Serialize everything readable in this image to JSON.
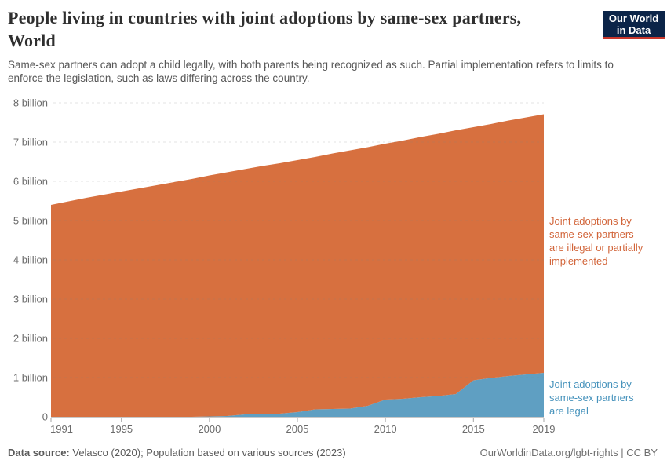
{
  "header": {
    "title_line1": "People living in countries with joint adoptions by same-sex partners,",
    "title_line2": "World",
    "subtitle": "Same-sex partners can adopt a child legally, with both parents being recognized as such. Partial implementation refers to limits to enforce the legislation, such as laws differing across the country.",
    "logo_line1": "Our World",
    "logo_line2": "in Data"
  },
  "legend": {
    "illegal_label": "Joint adoptions by same-sex partners are illegal or partially implemented",
    "legal_label": "Joint adoptions by same-sex partners are legal"
  },
  "footer": {
    "source_prefix": "Data source:",
    "source_text": " Velasco (2020); Population based on various sources (2023)",
    "credit": "OurWorldinData.org/lgbt-rights | CC BY"
  },
  "colors": {
    "legal_area": "#5f9fc2",
    "illegal_area": "#d7703f",
    "legal_label_text": "#4793bc",
    "illegal_label_text": "#d2653a",
    "logo_bg": "#0b2448",
    "logo_bar": "#c9372c",
    "gridline": "#808080",
    "axis_line": "#c7c7c7",
    "axis_tick": "#a5a5a5",
    "axis_text": "#6b6b6b"
  },
  "chart_data": {
    "type": "area",
    "stacked": true,
    "title": "People living in countries with joint adoptions by same-sex partners, World",
    "unit": "people",
    "grid": true,
    "legend_position": "right",
    "x": [
      1991,
      1992,
      1993,
      1994,
      1995,
      1996,
      1997,
      1998,
      1999,
      2000,
      2001,
      2002,
      2003,
      2004,
      2005,
      2006,
      2007,
      2008,
      2009,
      2010,
      2011,
      2012,
      2013,
      2014,
      2015,
      2016,
      2017,
      2018,
      2019
    ],
    "series": [
      {
        "name": "Joint adoptions by same-sex partners are legal",
        "color": "#5f9fc2",
        "values_billions": [
          0,
          0,
          0,
          0,
          0,
          0,
          0,
          0,
          0,
          0.01,
          0.02,
          0.06,
          0.07,
          0.08,
          0.12,
          0.19,
          0.2,
          0.21,
          0.28,
          0.44,
          0.46,
          0.5,
          0.53,
          0.58,
          0.93,
          0.99,
          1.04,
          1.08,
          1.12
        ]
      },
      {
        "name": "Joint adoptions by same-sex partners are illegal or partially implemented",
        "color": "#d7703f",
        "values_billions": [
          5.4,
          5.49,
          5.58,
          5.66,
          5.74,
          5.82,
          5.9,
          5.98,
          6.06,
          6.14,
          6.21,
          6.25,
          6.32,
          6.38,
          6.42,
          6.43,
          6.51,
          6.58,
          6.59,
          6.52,
          6.58,
          6.63,
          6.68,
          6.72,
          6.45,
          6.47,
          6.51,
          6.55,
          6.59
        ]
      }
    ],
    "xlim": [
      1991,
      2019
    ],
    "ylim": [
      0,
      8
    ],
    "ylabel": "",
    "xlabel": "",
    "yticks": [
      {
        "value": 0,
        "label": "0"
      },
      {
        "value": 1,
        "label": "1 billion"
      },
      {
        "value": 2,
        "label": "2 billion"
      },
      {
        "value": 3,
        "label": "3 billion"
      },
      {
        "value": 4,
        "label": "4 billion"
      },
      {
        "value": 5,
        "label": "5 billion"
      },
      {
        "value": 6,
        "label": "6 billion"
      },
      {
        "value": 7,
        "label": "7 billion"
      },
      {
        "value": 8,
        "label": "8 billion"
      }
    ],
    "xticks": [
      1991,
      1995,
      2000,
      2005,
      2010,
      2015,
      2019
    ]
  }
}
